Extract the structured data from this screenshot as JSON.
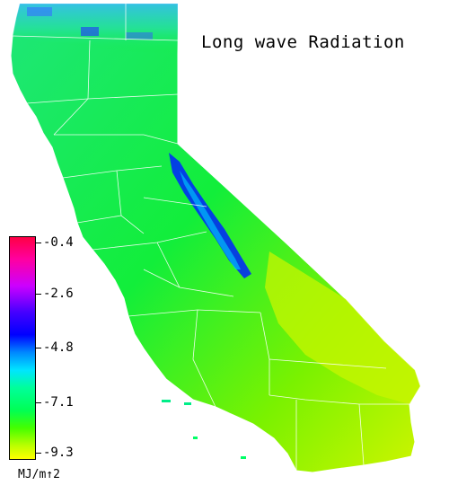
{
  "title": "Long wave Radiation",
  "legend": {
    "ticks": [
      "-0.4",
      "-2.6",
      "-4.8",
      "-7.1",
      "-9.3"
    ],
    "unit": "MJ/m↑2",
    "color_stops": [
      "#ff0044",
      "#cc00ff",
      "#0000ff",
      "#00e5ff",
      "#00ff55",
      "#ffff00"
    ]
  },
  "map": {
    "region": "California",
    "base_color": "#00ee44",
    "high_color": "#0000ff",
    "low_color": "#ddff00"
  }
}
